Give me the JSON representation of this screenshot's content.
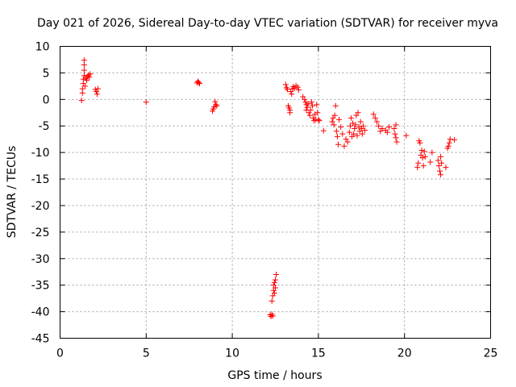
{
  "chart_data": {
    "type": "scatter",
    "title": "Day 021 of 2026, Sidereal Day-to-day VTEC variation (SDTVAR) for receiver myva",
    "xlabel": "GPS time / hours",
    "ylabel": "SDTVAR / TECUs",
    "xlim": [
      0,
      25
    ],
    "ylim": [
      -45,
      10
    ],
    "xticks": [
      0,
      5,
      10,
      15,
      20,
      25
    ],
    "yticks": [
      10,
      5,
      0,
      -5,
      -10,
      -15,
      -20,
      -25,
      -30,
      -35,
      -40,
      -45
    ],
    "grid": true,
    "marker": "+",
    "color": "#ff0000",
    "points": [
      [
        1.25,
        -0.2
      ],
      [
        1.3,
        1.2
      ],
      [
        1.3,
        2.0
      ],
      [
        1.35,
        3.0
      ],
      [
        1.35,
        3.8
      ],
      [
        1.4,
        4.5
      ],
      [
        1.4,
        5.5
      ],
      [
        1.4,
        6.5
      ],
      [
        1.4,
        7.4
      ],
      [
        1.45,
        2.5
      ],
      [
        1.5,
        4.0
      ],
      [
        1.55,
        3.6
      ],
      [
        1.6,
        4.3
      ],
      [
        1.65,
        4.6
      ],
      [
        1.7,
        4.2
      ],
      [
        1.75,
        4.8
      ],
      [
        2.05,
        1.9
      ],
      [
        2.1,
        1.5
      ],
      [
        2.15,
        1.0
      ],
      [
        2.2,
        2.0
      ],
      [
        5.0,
        -0.5
      ],
      [
        7.95,
        3.1
      ],
      [
        8.0,
        3.4
      ],
      [
        8.05,
        3.2
      ],
      [
        8.1,
        3.0
      ],
      [
        8.85,
        -2.2
      ],
      [
        8.9,
        -1.8
      ],
      [
        8.95,
        -1.4
      ],
      [
        9.0,
        -0.4
      ],
      [
        9.05,
        -1.0
      ],
      [
        9.1,
        -1.2
      ],
      [
        12.2,
        -40.6
      ],
      [
        12.25,
        -40.9
      ],
      [
        12.3,
        -40.5
      ],
      [
        12.35,
        -40.8
      ],
      [
        12.3,
        -38.0
      ],
      [
        12.35,
        -37.0
      ],
      [
        12.4,
        -36.0
      ],
      [
        12.4,
        -35.0
      ],
      [
        12.45,
        -34.5
      ],
      [
        12.5,
        -35.5
      ],
      [
        12.5,
        -34.0
      ],
      [
        12.55,
        -33.0
      ],
      [
        12.45,
        -36.5
      ],
      [
        13.1,
        2.8
      ],
      [
        13.15,
        2.2
      ],
      [
        13.2,
        1.9
      ],
      [
        13.25,
        -1.2
      ],
      [
        13.3,
        -1.6
      ],
      [
        13.35,
        -2.0
      ],
      [
        13.35,
        -2.5
      ],
      [
        13.4,
        1.5
      ],
      [
        13.45,
        1.0
      ],
      [
        13.5,
        2.0
      ],
      [
        13.55,
        2.4
      ],
      [
        13.6,
        2.1
      ],
      [
        13.7,
        2.6
      ],
      [
        13.8,
        2.3
      ],
      [
        13.85,
        1.8
      ],
      [
        14.1,
        0.5
      ],
      [
        14.2,
        0.0
      ],
      [
        14.25,
        -0.5
      ],
      [
        14.3,
        -1.0
      ],
      [
        14.3,
        -2.0
      ],
      [
        14.35,
        -1.5
      ],
      [
        14.4,
        -0.8
      ],
      [
        14.45,
        -2.5
      ],
      [
        14.5,
        -3.0
      ],
      [
        14.55,
        -2.0
      ],
      [
        14.6,
        -0.5
      ],
      [
        14.65,
        -1.2
      ],
      [
        14.7,
        -3.5
      ],
      [
        14.75,
        -4.0
      ],
      [
        14.8,
        -2.8
      ],
      [
        14.85,
        -3.8
      ],
      [
        14.9,
        -1.0
      ],
      [
        14.95,
        -2.5
      ],
      [
        15.0,
        -3.8
      ],
      [
        15.05,
        -4.0
      ],
      [
        15.3,
        -5.9
      ],
      [
        15.8,
        -4.2
      ],
      [
        15.85,
        -3.5
      ],
      [
        15.9,
        -4.8
      ],
      [
        15.95,
        -3.0
      ],
      [
        16.0,
        -1.2
      ],
      [
        16.05,
        -6.0
      ],
      [
        16.1,
        -7.0
      ],
      [
        16.15,
        -8.5
      ],
      [
        16.2,
        -3.8
      ],
      [
        16.3,
        -5.2
      ],
      [
        16.4,
        -6.5
      ],
      [
        16.5,
        -8.8
      ],
      [
        16.6,
        -7.5
      ],
      [
        16.7,
        -8.0
      ],
      [
        16.8,
        -6.2
      ],
      [
        16.85,
        -5.0
      ],
      [
        16.9,
        -3.5
      ],
      [
        16.95,
        -7.0
      ],
      [
        17.0,
        -4.5
      ],
      [
        17.05,
        -6.5
      ],
      [
        17.1,
        -5.5
      ],
      [
        17.15,
        -4.8
      ],
      [
        17.2,
        -3.0
      ],
      [
        17.25,
        -6.8
      ],
      [
        17.3,
        -2.5
      ],
      [
        17.35,
        -5.2
      ],
      [
        17.4,
        -6.0
      ],
      [
        17.45,
        -4.2
      ],
      [
        17.5,
        -5.5
      ],
      [
        17.55,
        -6.5
      ],
      [
        17.6,
        -5.0
      ],
      [
        17.7,
        -5.8
      ],
      [
        18.2,
        -2.8
      ],
      [
        18.3,
        -3.5
      ],
      [
        18.4,
        -4.2
      ],
      [
        18.5,
        -5.0
      ],
      [
        18.6,
        -6.0
      ],
      [
        18.7,
        -5.5
      ],
      [
        18.9,
        -5.8
      ],
      [
        19.0,
        -6.2
      ],
      [
        19.1,
        -5.2
      ],
      [
        19.4,
        -5.5
      ],
      [
        19.45,
        -6.5
      ],
      [
        19.5,
        -7.2
      ],
      [
        19.55,
        -8.0
      ],
      [
        19.5,
        -4.8
      ],
      [
        20.1,
        -6.8
      ],
      [
        20.75,
        -12.8
      ],
      [
        20.8,
        -12.0
      ],
      [
        20.85,
        -7.8
      ],
      [
        20.9,
        -8.2
      ],
      [
        20.95,
        -10.5
      ],
      [
        21.0,
        -9.6
      ],
      [
        21.05,
        -11.0
      ],
      [
        21.1,
        -12.5
      ],
      [
        21.15,
        -9.8
      ],
      [
        21.2,
        -10.8
      ],
      [
        21.5,
        -11.8
      ],
      [
        21.6,
        -10.0
      ],
      [
        21.95,
        -11.5
      ],
      [
        22.0,
        -12.5
      ],
      [
        22.05,
        -13.5
      ],
      [
        22.1,
        -14.2
      ],
      [
        22.1,
        -10.8
      ],
      [
        22.15,
        -12.0
      ],
      [
        22.4,
        -12.8
      ],
      [
        22.5,
        -9.2
      ],
      [
        22.55,
        -8.8
      ],
      [
        22.6,
        -8.2
      ],
      [
        22.65,
        -7.5
      ],
      [
        22.9,
        -7.6
      ]
    ]
  }
}
